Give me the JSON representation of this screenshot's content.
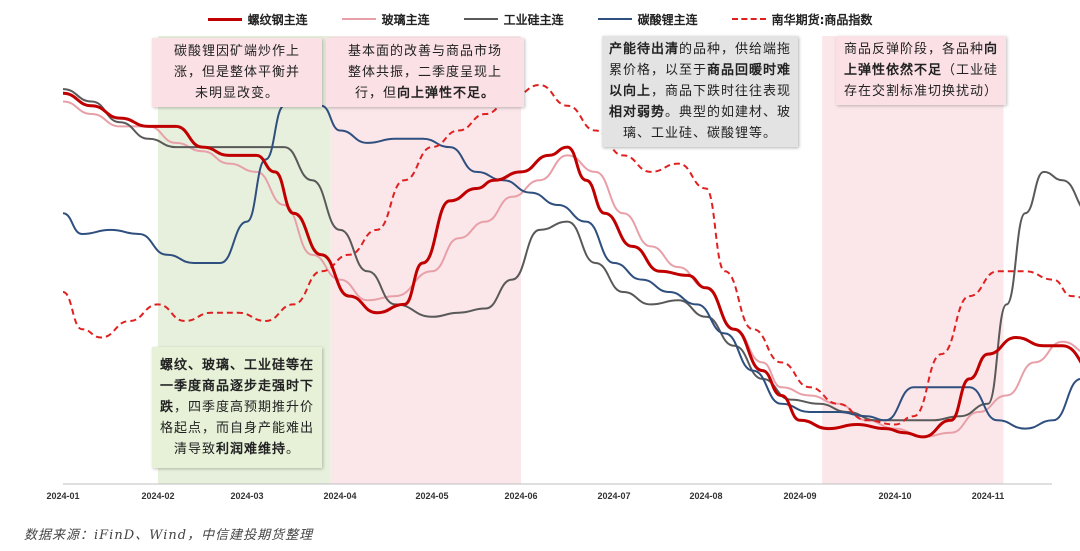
{
  "legend": [
    {
      "name": "螺纹钢主连",
      "color": "#c00000",
      "dash": "solid",
      "width": 3
    },
    {
      "name": "玻璃主连",
      "color": "#e8a0a8",
      "dash": "solid",
      "width": 2
    },
    {
      "name": "工业硅主连",
      "color": "#595959",
      "dash": "solid",
      "width": 2
    },
    {
      "name": "碳酸锂主连",
      "color": "#2f4f7f",
      "dash": "solid",
      "width": 2
    },
    {
      "name": "南华期货:商品指数",
      "color": "#e02020",
      "dash": "dashed",
      "width": 2
    }
  ],
  "notes": {
    "note1": {
      "lines": [
        "碳酸锂因矿端炒作上",
        "涨，但是整体平衡并",
        "未明显改变。"
      ]
    },
    "note2": {
      "lines": [
        "基本面的改善与商品市场",
        "整体共振，二季度呈现上",
        "行，但"
      ],
      "bold": "向上弹性不足。"
    },
    "note3": {
      "parts": [
        {
          "t": "产能待出清",
          "b": true
        },
        {
          "t": "的品种，供给",
          "b": false
        },
        {
          "t": "端拖累价格，以至于",
          "b": false
        },
        {
          "t": "商品",
          "b": true
        },
        {
          "t": "回暖时难以向上",
          "b": true
        },
        {
          "t": "，商品下",
          "b": false
        },
        {
          "t": "跌时往往表现",
          "b": false
        },
        {
          "t": "相对弱势",
          "b": true
        },
        {
          "t": "。",
          "b": false
        },
        {
          "t": "典型的如建材、玻璃、工",
          "b": false
        },
        {
          "t": "业硅、碳酸锂等。",
          "b": false
        }
      ]
    },
    "note4": {
      "parts": [
        {
          "t": "商品反弹阶段，各",
          "b": false
        },
        {
          "t": "品种",
          "b": false
        },
        {
          "t": "向上弹性依然",
          "b": true
        },
        {
          "t": "不足",
          "b": true
        },
        {
          "t": "（工业硅存在",
          "b": false
        },
        {
          "t": "交割标准切换扰动）",
          "b": false
        }
      ]
    },
    "note5": {
      "parts": [
        {
          "t": "螺纹、玻璃、工业硅",
          "b": true
        },
        {
          "t": "等在一季度",
          "b": true
        },
        {
          "t": "商品逐步",
          "b": true
        },
        {
          "t": "走强时下跌",
          "b": true
        },
        {
          "t": "，四季度",
          "b": false
        },
        {
          "t": "高预期推升价格起点，",
          "b": false
        },
        {
          "t": "而自身产能难出清导",
          "b": false
        },
        {
          "t": "致",
          "b": false
        },
        {
          "t": "利润难维持",
          "b": true
        },
        {
          "t": "。",
          "b": false
        }
      ]
    }
  },
  "source": "数据来源：iFinD、Wind，中信建投期货整理",
  "chart_data": {
    "type": "line",
    "x_start": "2024-01",
    "x_end": "2024-11",
    "xticks": [
      "2024-01",
      "2024-02",
      "2024-03",
      "2024-04",
      "2024-05",
      "2024-06",
      "2024-07",
      "2024-08",
      "2024-09",
      "2024-10",
      "2024-11"
    ],
    "shaded_ranges": [
      {
        "from": "2024-02-01",
        "to": "2024-03-28",
        "color": "#e7f0dc"
      },
      {
        "from": "2024-03-28",
        "to": "2024-06-01",
        "color": "#fbe7ea"
      },
      {
        "from": "2024-09-08",
        "to": "2024-11-06",
        "color": "#fbe7ea"
      }
    ],
    "ylim": [
      0,
      100
    ],
    "grid": false,
    "series": [
      {
        "name": "螺纹钢主连",
        "points": [
          [
            0,
            91
          ],
          [
            0.3,
            88
          ],
          [
            0.6,
            85
          ],
          [
            0.9,
            83
          ],
          [
            1.2,
            83
          ],
          [
            1.5,
            78
          ],
          [
            1.8,
            76
          ],
          [
            2.1,
            76
          ],
          [
            2.3,
            72
          ],
          [
            2.5,
            62
          ],
          [
            2.8,
            52
          ],
          [
            3.1,
            42
          ],
          [
            3.4,
            38
          ],
          [
            3.7,
            40
          ],
          [
            3.9,
            50
          ],
          [
            4.2,
            65
          ],
          [
            4.5,
            68
          ],
          [
            4.7,
            70
          ],
          [
            5.0,
            72
          ],
          [
            5.3,
            76
          ],
          [
            5.5,
            78
          ],
          [
            5.7,
            70
          ],
          [
            5.9,
            62
          ],
          [
            6.2,
            54
          ],
          [
            6.5,
            48
          ],
          [
            6.8,
            47
          ],
          [
            7.0,
            44
          ],
          [
            7.3,
            34
          ],
          [
            7.6,
            24
          ],
          [
            7.8,
            18
          ],
          [
            8.0,
            12
          ],
          [
            8.3,
            10
          ],
          [
            8.6,
            11
          ],
          [
            8.9,
            10
          ],
          [
            9.1,
            9
          ],
          [
            9.3,
            8
          ],
          [
            9.6,
            12
          ],
          [
            9.8,
            22
          ],
          [
            10.0,
            28
          ],
          [
            10.3,
            32
          ],
          [
            10.6,
            30
          ],
          [
            10.8,
            30
          ],
          [
            11.2,
            22
          ],
          [
            11.4,
            18
          ]
        ]
      },
      {
        "name": "玻璃主连",
        "points": [
          [
            0,
            89
          ],
          [
            0.3,
            86
          ],
          [
            0.6,
            83
          ],
          [
            0.9,
            83
          ],
          [
            1.2,
            79
          ],
          [
            1.5,
            77
          ],
          [
            1.8,
            74
          ],
          [
            2.1,
            72
          ],
          [
            2.4,
            64
          ],
          [
            2.7,
            52
          ],
          [
            3.0,
            46
          ],
          [
            3.3,
            41
          ],
          [
            3.6,
            42
          ],
          [
            4.0,
            48
          ],
          [
            4.3,
            56
          ],
          [
            4.6,
            60
          ],
          [
            4.9,
            66
          ],
          [
            5.2,
            70
          ],
          [
            5.5,
            76
          ],
          [
            5.8,
            72
          ],
          [
            6.1,
            62
          ],
          [
            6.4,
            54
          ],
          [
            6.7,
            49
          ],
          [
            7.0,
            44
          ],
          [
            7.3,
            34
          ],
          [
            7.6,
            26
          ],
          [
            7.8,
            20
          ],
          [
            8.1,
            18
          ],
          [
            8.4,
            16
          ],
          [
            8.7,
            12
          ],
          [
            9.0,
            10
          ],
          [
            9.3,
            8
          ],
          [
            9.6,
            9
          ],
          [
            9.9,
            14
          ],
          [
            10.2,
            18
          ],
          [
            10.5,
            26
          ],
          [
            10.8,
            31
          ],
          [
            11.1,
            28
          ],
          [
            11.4,
            14
          ]
        ]
      },
      {
        "name": "工业硅主连",
        "points": [
          [
            0,
            92
          ],
          [
            0.3,
            89
          ],
          [
            0.6,
            84
          ],
          [
            0.9,
            80
          ],
          [
            1.2,
            78
          ],
          [
            1.5,
            78
          ],
          [
            1.8,
            78
          ],
          [
            2.1,
            78
          ],
          [
            2.4,
            78
          ],
          [
            2.7,
            70
          ],
          [
            3.0,
            58
          ],
          [
            3.3,
            48
          ],
          [
            3.6,
            40
          ],
          [
            4.0,
            37
          ],
          [
            4.3,
            38
          ],
          [
            4.6,
            39
          ],
          [
            4.9,
            46
          ],
          [
            5.2,
            58
          ],
          [
            5.5,
            60
          ],
          [
            5.8,
            50
          ],
          [
            6.1,
            43
          ],
          [
            6.4,
            40
          ],
          [
            6.7,
            41
          ],
          [
            7.0,
            37
          ],
          [
            7.3,
            30
          ],
          [
            7.6,
            22
          ],
          [
            7.9,
            17
          ],
          [
            8.2,
            16
          ],
          [
            8.5,
            14
          ],
          [
            8.8,
            12
          ],
          [
            9.1,
            12
          ],
          [
            9.4,
            12
          ],
          [
            9.7,
            13
          ],
          [
            10.0,
            16
          ],
          [
            10.2,
            40
          ],
          [
            10.4,
            62
          ],
          [
            10.6,
            72
          ],
          [
            10.8,
            70
          ],
          [
            11.1,
            62
          ],
          [
            11.4,
            56
          ]
        ]
      },
      {
        "name": "碳酸锂主连",
        "points": [
          [
            0,
            62
          ],
          [
            0.2,
            57
          ],
          [
            0.5,
            58
          ],
          [
            0.8,
            57
          ],
          [
            1.1,
            52
          ],
          [
            1.4,
            50
          ],
          [
            1.7,
            50
          ],
          [
            2.0,
            60
          ],
          [
            2.2,
            75
          ],
          [
            2.4,
            88
          ],
          [
            2.6,
            90
          ],
          [
            2.8,
            88
          ],
          [
            3.0,
            82
          ],
          [
            3.3,
            79
          ],
          [
            3.6,
            80
          ],
          [
            3.9,
            80
          ],
          [
            4.2,
            78
          ],
          [
            4.5,
            72
          ],
          [
            4.8,
            70
          ],
          [
            5.1,
            67
          ],
          [
            5.4,
            64
          ],
          [
            5.7,
            60
          ],
          [
            6.0,
            50
          ],
          [
            6.3,
            46
          ],
          [
            6.6,
            43
          ],
          [
            6.9,
            40
          ],
          [
            7.2,
            33
          ],
          [
            7.5,
            24
          ],
          [
            7.8,
            16
          ],
          [
            8.1,
            14
          ],
          [
            8.4,
            14
          ],
          [
            8.7,
            13
          ],
          [
            8.9,
            12
          ],
          [
            9.2,
            20
          ],
          [
            9.5,
            20
          ],
          [
            9.8,
            20
          ],
          [
            10.1,
            12
          ],
          [
            10.4,
            10
          ],
          [
            10.7,
            12
          ],
          [
            11.0,
            22
          ],
          [
            11.2,
            32
          ],
          [
            11.4,
            34
          ]
        ]
      },
      {
        "name": "南华期货:商品指数",
        "points": [
          [
            0,
            43
          ],
          [
            0.2,
            34
          ],
          [
            0.4,
            32
          ],
          [
            0.7,
            36
          ],
          [
            1.0,
            40
          ],
          [
            1.3,
            36
          ],
          [
            1.6,
            38
          ],
          [
            1.9,
            38
          ],
          [
            2.2,
            36
          ],
          [
            2.5,
            40
          ],
          [
            2.8,
            48
          ],
          [
            3.1,
            52
          ],
          [
            3.4,
            58
          ],
          [
            3.7,
            70
          ],
          [
            4.0,
            78
          ],
          [
            4.3,
            82
          ],
          [
            4.6,
            86
          ],
          [
            4.9,
            90
          ],
          [
            5.2,
            93
          ],
          [
            5.5,
            88
          ],
          [
            5.8,
            82
          ],
          [
            6.1,
            76
          ],
          [
            6.4,
            72
          ],
          [
            6.7,
            74
          ],
          [
            7.0,
            68
          ],
          [
            7.2,
            48
          ],
          [
            7.5,
            34
          ],
          [
            7.8,
            26
          ],
          [
            8.1,
            20
          ],
          [
            8.4,
            16
          ],
          [
            8.7,
            12
          ],
          [
            9.0,
            11
          ],
          [
            9.2,
            13
          ],
          [
            9.5,
            28
          ],
          [
            9.8,
            42
          ],
          [
            10.1,
            48
          ],
          [
            10.4,
            48
          ],
          [
            10.7,
            46
          ],
          [
            10.9,
            42
          ],
          [
            11.2,
            40
          ],
          [
            11.4,
            30
          ]
        ]
      }
    ]
  }
}
